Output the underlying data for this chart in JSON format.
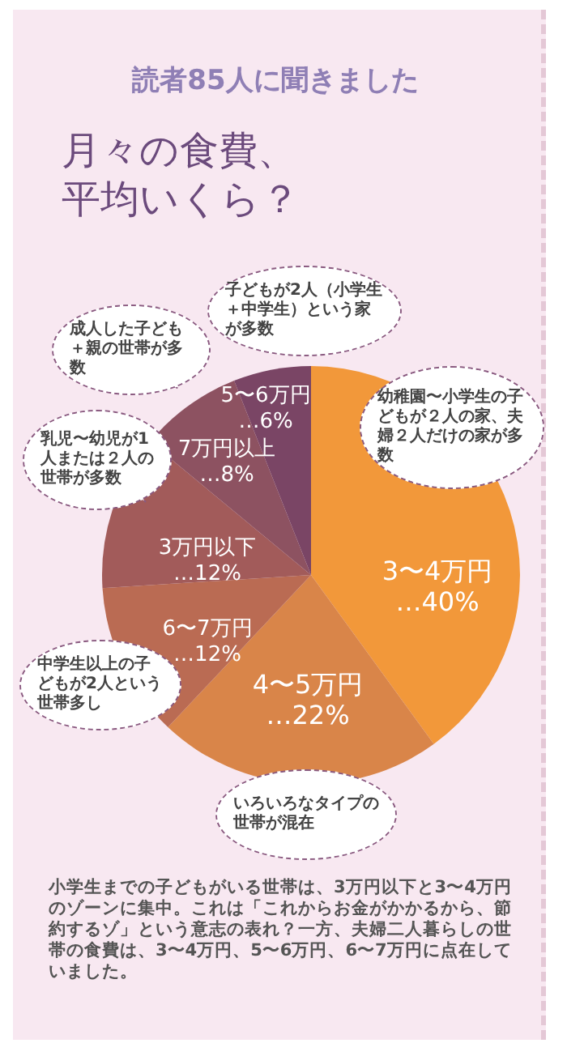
{
  "chart_data": {
    "type": "pie",
    "subtitle": "読者85人に聞きました",
    "title": "月々の食費、平均いくら？",
    "categories": [
      "3〜4万円",
      "4〜5万円",
      "6〜7万円",
      "3万円以下",
      "7万円以上",
      "5〜6万円"
    ],
    "values": [
      40,
      22,
      12,
      12,
      8,
      6
    ],
    "colors": [
      "#f2983a",
      "#d98549",
      "#ba6b53",
      "#a25b5a",
      "#8d5261",
      "#7a4565"
    ],
    "value_labels": [
      "…40%",
      "…22%",
      "…12%",
      "…12%",
      "…8%",
      "…6%"
    ],
    "annotations": [
      "幼稚園〜小学生の子どもが２人の家、夫婦２人だけの家が多数",
      "いろいろなタイプの世帯が混在",
      "中学生以上の子どもが2人という世帯多し",
      "乳児〜幼児が1人または２人の世帯が多数",
      "成人した子ども＋親の世帯が多数",
      "子どもが2人（小学生＋中学生）という家が多数",
      "小学生までの子どもがいる世帯は、3万円以下と3〜4万円のゾーンに集中。これは「これからお金がかかるから、節約するゾ」という意志の表れ？一方、夫婦二人暮らしの世帯の食費は、3〜4万円、5〜6万円、6〜7万円に点在していました。"
    ]
  }
}
